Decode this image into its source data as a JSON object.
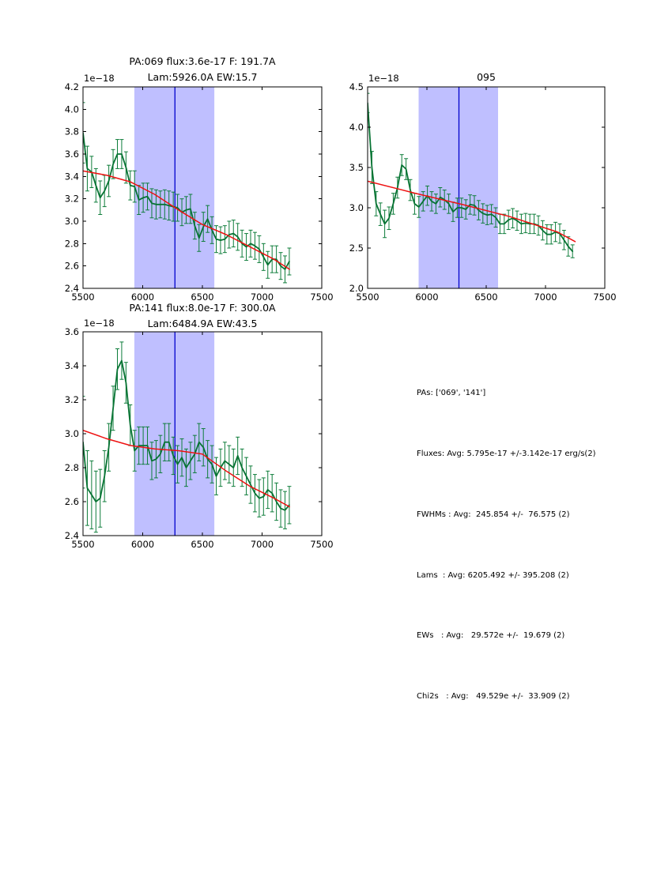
{
  "colors": {
    "background": "#ffffff",
    "data_line": "#077333",
    "error_bar": "#0e7d3a",
    "fit_line": "#ee1111",
    "band_fill": "#bfbfff",
    "vline": "#0000cc",
    "frame": "#000000",
    "text": "#000000"
  },
  "chart_data": [
    {
      "type": "line",
      "id": "pa069",
      "title_line1": "PA:069 flux:3.6e-17 F: 191.7A",
      "title_line2": "Lam:5926.0A EW:15.7",
      "offset_label": "1e−18",
      "xlim": [
        5500,
        7500
      ],
      "ylim": [
        2.4,
        4.2
      ],
      "xticks": [
        5500,
        6000,
        6500,
        7000,
        7500
      ],
      "xtick_labels": [
        "5500",
        "6000",
        "6500",
        "7000",
        "7500"
      ],
      "yticks": [
        2.4,
        2.6,
        2.8,
        3.0,
        3.2,
        3.4,
        3.6,
        3.8,
        4.0,
        4.2
      ],
      "ytick_labels": [
        "2.4",
        "2.6",
        "2.8",
        "3.0",
        "3.2",
        "3.4",
        "3.6",
        "3.8",
        "4.0",
        "4.2"
      ],
      "band": [
        5930,
        6600
      ],
      "vline": 6270,
      "series": [
        {
          "name": "spectrum-line",
          "role": "data",
          "x": [
            5500,
            5536,
            5572,
            5608,
            5644,
            5680,
            5716,
            5752,
            5788,
            5824,
            5860,
            5896,
            5932,
            5968,
            6004,
            6040,
            6076,
            6112,
            6148,
            6184,
            6220,
            6256,
            6292,
            6328,
            6364,
            6400,
            6436,
            6472,
            6508,
            6544,
            6580,
            6616,
            6652,
            6688,
            6724,
            6760,
            6796,
            6832,
            6868,
            6904,
            6940,
            6976,
            7012,
            7048,
            7084,
            7120,
            7156,
            7192,
            7228
          ],
          "y": [
            3.79,
            3.47,
            3.44,
            3.32,
            3.21,
            3.27,
            3.36,
            3.51,
            3.6,
            3.6,
            3.48,
            3.32,
            3.31,
            3.19,
            3.21,
            3.22,
            3.16,
            3.15,
            3.15,
            3.15,
            3.14,
            3.13,
            3.12,
            3.08,
            3.1,
            3.11,
            2.96,
            2.85,
            2.95,
            3.02,
            2.92,
            2.84,
            2.83,
            2.84,
            2.88,
            2.89,
            2.86,
            2.8,
            2.77,
            2.8,
            2.78,
            2.75,
            2.68,
            2.61,
            2.66,
            2.66,
            2.6,
            2.57,
            2.64
          ],
          "yerr": [
            0.27,
            0.2,
            0.14,
            0.15,
            0.15,
            0.14,
            0.14,
            0.13,
            0.13,
            0.13,
            0.14,
            0.13,
            0.14,
            0.13,
            0.13,
            0.12,
            0.13,
            0.13,
            0.12,
            0.13,
            0.13,
            0.13,
            0.12,
            0.12,
            0.12,
            0.13,
            0.12,
            0.12,
            0.13,
            0.12,
            0.12,
            0.12,
            0.12,
            0.12,
            0.12,
            0.12,
            0.12,
            0.12,
            0.12,
            0.12,
            0.12,
            0.12,
            0.12,
            0.12,
            0.12,
            0.12,
            0.12,
            0.12,
            0.12
          ]
        },
        {
          "name": "continuum-fit-line",
          "role": "fit",
          "x": [
            5500,
            5700,
            5900,
            6100,
            6300,
            6500,
            6700,
            6900,
            7100,
            7230
          ],
          "y": [
            3.45,
            3.41,
            3.35,
            3.24,
            3.1,
            2.97,
            2.88,
            2.77,
            2.66,
            2.57
          ]
        }
      ]
    },
    {
      "type": "line",
      "id": "095",
      "title_line1": "095",
      "title_line2": "",
      "offset_label": "1e−18",
      "xlim": [
        5500,
        7500
      ],
      "ylim": [
        2.0,
        4.5
      ],
      "xticks": [
        5500,
        6000,
        6500,
        7000,
        7500
      ],
      "xtick_labels": [
        "5500",
        "6000",
        "6500",
        "7000",
        "7500"
      ],
      "yticks": [
        2.0,
        2.5,
        3.0,
        3.5,
        4.0,
        4.5
      ],
      "ytick_labels": [
        "2.0",
        "2.5",
        "3.0",
        "3.5",
        "4.0",
        "4.5"
      ],
      "band": [
        5930,
        6600
      ],
      "vline": 6270,
      "series": [
        {
          "name": "spectrum-line",
          "role": "data",
          "x": [
            5500,
            5536,
            5572,
            5608,
            5644,
            5680,
            5716,
            5752,
            5788,
            5824,
            5860,
            5896,
            5932,
            5968,
            6004,
            6040,
            6076,
            6112,
            6148,
            6184,
            6220,
            6256,
            6292,
            6328,
            6364,
            6400,
            6436,
            6472,
            6508,
            6544,
            6580,
            6616,
            6652,
            6688,
            6724,
            6760,
            6796,
            6832,
            6868,
            6904,
            6940,
            6976,
            7012,
            7048,
            7084,
            7120,
            7156,
            7192,
            7228
          ],
          "y": [
            4.3,
            3.5,
            3.05,
            2.92,
            2.8,
            2.87,
            3.05,
            3.25,
            3.53,
            3.48,
            3.22,
            3.05,
            3.01,
            3.08,
            3.15,
            3.08,
            3.05,
            3.13,
            3.1,
            3.05,
            2.95,
            3.0,
            3.0,
            2.98,
            3.04,
            3.03,
            2.97,
            2.93,
            2.91,
            2.92,
            2.88,
            2.8,
            2.8,
            2.85,
            2.87,
            2.84,
            2.8,
            2.81,
            2.8,
            2.8,
            2.78,
            2.72,
            2.67,
            2.67,
            2.7,
            2.68,
            2.6,
            2.52,
            2.46
          ],
          "yerr": [
            0.12,
            0.2,
            0.15,
            0.14,
            0.17,
            0.14,
            0.13,
            0.13,
            0.13,
            0.13,
            0.13,
            0.13,
            0.13,
            0.12,
            0.12,
            0.12,
            0.12,
            0.12,
            0.12,
            0.12,
            0.12,
            0.12,
            0.12,
            0.12,
            0.12,
            0.12,
            0.12,
            0.12,
            0.12,
            0.12,
            0.12,
            0.12,
            0.12,
            0.12,
            0.12,
            0.12,
            0.12,
            0.12,
            0.12,
            0.12,
            0.12,
            0.12,
            0.12,
            0.12,
            0.12,
            0.12,
            0.12,
            0.12,
            0.08
          ]
        },
        {
          "name": "continuum-fit-line",
          "role": "fit",
          "x": [
            5500,
            5900,
            6300,
            6700,
            7100,
            7250
          ],
          "y": [
            3.33,
            3.18,
            3.04,
            2.89,
            2.7,
            2.58
          ]
        }
      ]
    },
    {
      "type": "line",
      "id": "pa141",
      "title_line1": "PA:141 flux:8.0e-17 F: 300.0A",
      "title_line2": "Lam:6484.9A EW:43.5",
      "offset_label": "1e−18",
      "xlim": [
        5500,
        7500
      ],
      "ylim": [
        2.4,
        3.6
      ],
      "xticks": [
        5500,
        6000,
        6500,
        7000,
        7500
      ],
      "xtick_labels": [
        "5500",
        "6000",
        "6500",
        "7000",
        "7500"
      ],
      "yticks": [
        2.4,
        2.6,
        2.8,
        3.0,
        3.2,
        3.4,
        3.6
      ],
      "ytick_labels": [
        "2.4",
        "2.6",
        "2.8",
        "3.0",
        "3.2",
        "3.4",
        "3.6"
      ],
      "band": [
        5930,
        6600
      ],
      "vline": 6270,
      "series": [
        {
          "name": "spectrum-line",
          "role": "data",
          "x": [
            5500,
            5536,
            5572,
            5608,
            5644,
            5680,
            5716,
            5752,
            5788,
            5824,
            5860,
            5896,
            5932,
            5968,
            6004,
            6040,
            6076,
            6112,
            6148,
            6184,
            6220,
            6256,
            6292,
            6328,
            6364,
            6400,
            6436,
            6472,
            6508,
            6544,
            6580,
            6616,
            6652,
            6688,
            6724,
            6760,
            6796,
            6832,
            6868,
            6904,
            6940,
            6976,
            7012,
            7048,
            7084,
            7120,
            7156,
            7192,
            7228
          ],
          "y": [
            2.95,
            2.68,
            2.64,
            2.6,
            2.62,
            2.75,
            2.92,
            3.15,
            3.38,
            3.43,
            3.3,
            3.05,
            2.9,
            2.93,
            2.93,
            2.93,
            2.84,
            2.85,
            2.88,
            2.95,
            2.95,
            2.87,
            2.82,
            2.86,
            2.8,
            2.84,
            2.88,
            2.95,
            2.92,
            2.85,
            2.82,
            2.75,
            2.8,
            2.84,
            2.82,
            2.8,
            2.87,
            2.8,
            2.75,
            2.7,
            2.65,
            2.62,
            2.63,
            2.67,
            2.65,
            2.6,
            2.56,
            2.55,
            2.58
          ],
          "yerr": [
            0.27,
            0.22,
            0.2,
            0.18,
            0.17,
            0.15,
            0.14,
            0.13,
            0.12,
            0.11,
            0.12,
            0.12,
            0.12,
            0.11,
            0.11,
            0.11,
            0.11,
            0.11,
            0.11,
            0.11,
            0.11,
            0.11,
            0.11,
            0.11,
            0.11,
            0.11,
            0.11,
            0.11,
            0.11,
            0.11,
            0.11,
            0.11,
            0.11,
            0.11,
            0.11,
            0.11,
            0.11,
            0.11,
            0.11,
            0.11,
            0.11,
            0.11,
            0.11,
            0.11,
            0.11,
            0.11,
            0.11,
            0.11,
            0.11
          ]
        },
        {
          "name": "continuum-fit-line",
          "role": "fit",
          "x": [
            5500,
            5700,
            5900,
            6100,
            6300,
            6500,
            6700,
            6900,
            7100,
            7230
          ],
          "y": [
            3.02,
            2.97,
            2.93,
            2.91,
            2.9,
            2.88,
            2.78,
            2.69,
            2.62,
            2.57
          ]
        }
      ]
    }
  ],
  "summary": {
    "lines": [
      "PAs: ['069', '141']",
      "Fluxes: Avg: 5.795e-17 +/-3.142e-17 erg/s(2)",
      "FWHMs : Avg:  245.854 +/-  76.575 (2)",
      "Lams  : Avg: 6205.492 +/- 395.208 (2)",
      "EWs   : Avg:   29.572e +/-  19.679 (2)",
      "Chi2s   : Avg:   49.529e +/-  33.909 (2)"
    ]
  }
}
